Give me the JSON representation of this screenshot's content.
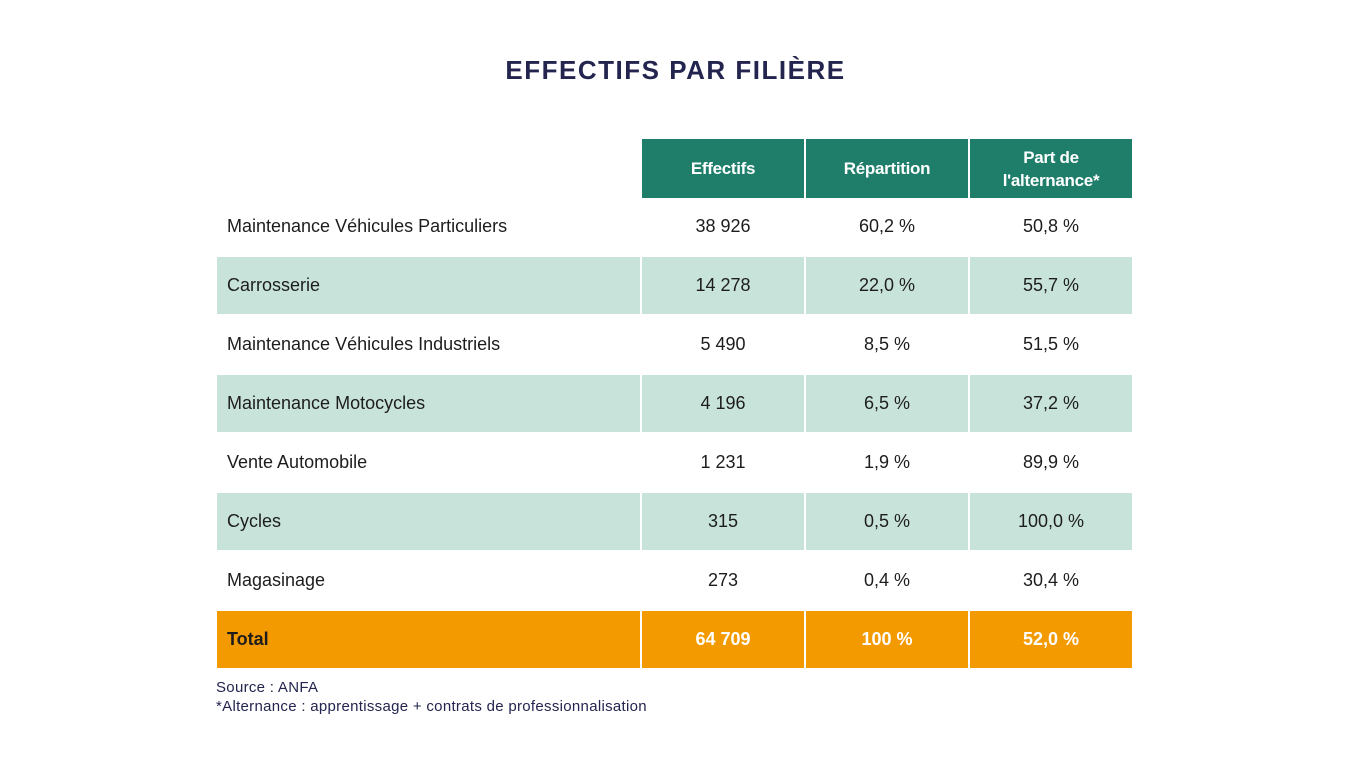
{
  "title": "EFFECTIFS PAR FILIÈRE",
  "colors": {
    "header_bg": "#1e7e6a",
    "stripe_bg": "#c8e3da",
    "total_bg": "#f39a00",
    "title": "#23254f"
  },
  "chart_data": {
    "type": "table",
    "title": "EFFECTIFS PAR FILIÈRE",
    "columns": [
      "Effectifs",
      "Répartition",
      "Part de l'alternance*"
    ],
    "column_lines": [
      [
        "Effectifs"
      ],
      [
        "Répartition"
      ],
      [
        "Part de",
        "l'alternance*"
      ]
    ],
    "rows": [
      {
        "label": "Maintenance Véhicules Particuliers",
        "effectifs": "38 926",
        "repartition": "60,2 %",
        "alternance": "50,8 %"
      },
      {
        "label": "Carrosserie",
        "effectifs": "14 278",
        "repartition": "22,0 %",
        "alternance": "55,7 %"
      },
      {
        "label": "Maintenance Véhicules Industriels",
        "effectifs": "5 490",
        "repartition": "8,5 %",
        "alternance": "51,5 %"
      },
      {
        "label": "Maintenance Motocycles",
        "effectifs": "4 196",
        "repartition": "6,5 %",
        "alternance": "37,2 %"
      },
      {
        "label": "Vente Automobile",
        "effectifs": "1 231",
        "repartition": "1,9 %",
        "alternance": "89,9 %"
      },
      {
        "label": "Cycles",
        "effectifs": "315",
        "repartition": "0,5 %",
        "alternance": "100,0 %"
      },
      {
        "label": "Magasinage",
        "effectifs": "273",
        "repartition": "0,4 %",
        "alternance": "30,4 %"
      }
    ],
    "total": {
      "label": "Total",
      "effectifs": "64 709",
      "repartition": "100 %",
      "alternance": "52,0 %"
    }
  },
  "notes": {
    "source": "Source : ANFA",
    "footnote": "*Alternance : apprentissage + contrats de professionnalisation"
  }
}
